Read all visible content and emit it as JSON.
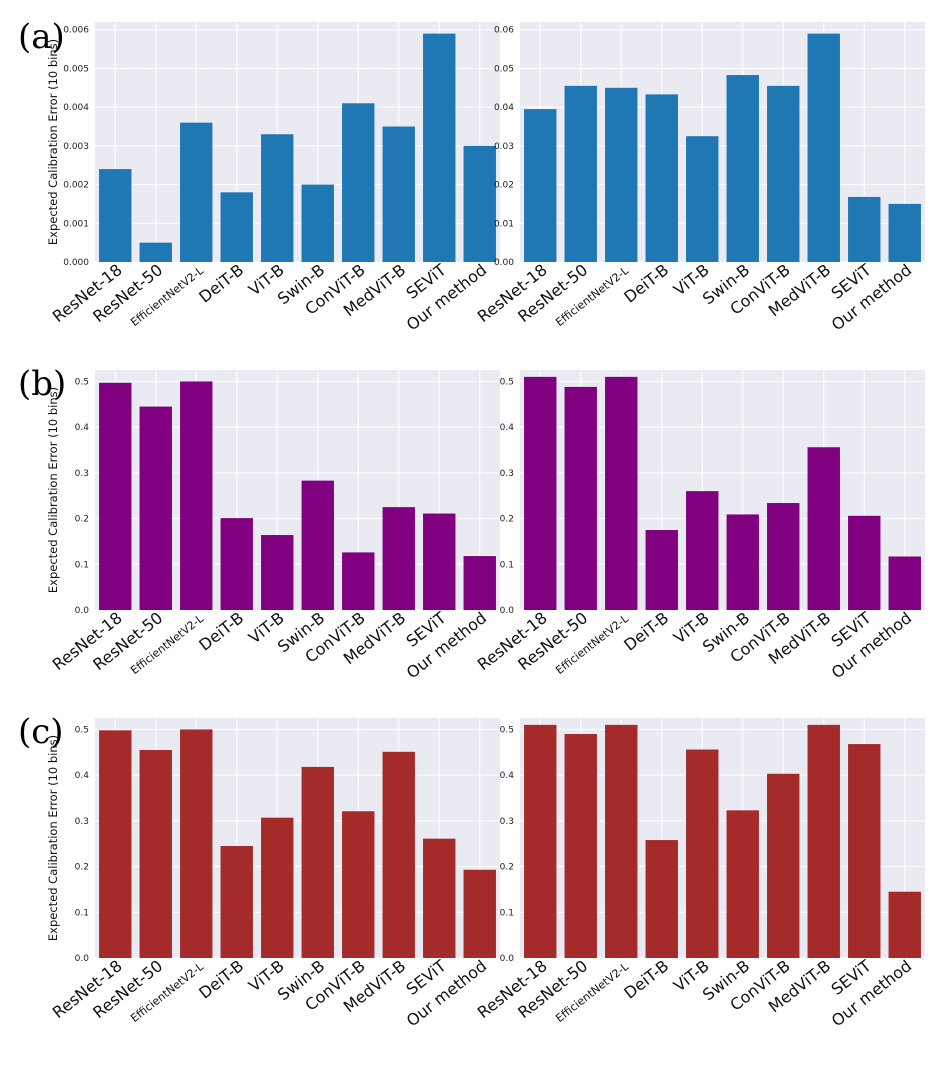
{
  "figure": {
    "row_labels": [
      "(a)",
      "(b)",
      "(c)"
    ],
    "ylabel": "Expected Calibration Error (10 bins)"
  },
  "colors": {
    "blue": "#1f77b4",
    "purple": "#800080",
    "red": "#a52a2a",
    "plot_bg": "#eaeaf2",
    "grid": "#ffffff"
  },
  "chart_data": [
    {
      "id": "a-left",
      "type": "bar",
      "row": "(a)",
      "categories": [
        "ResNet-18",
        "ResNet-50",
        "EfficientNetV2-L",
        "DeiT-B",
        "ViT-B",
        "Swin-B",
        "ConViT-B",
        "MedViT-B",
        "SEViT",
        "Our method"
      ],
      "values": [
        0.0024,
        0.0005,
        0.0036,
        0.0018,
        0.0033,
        0.002,
        0.0041,
        0.0035,
        0.0059,
        0.003
      ],
      "yticks": [
        "0.000",
        "0.001",
        "0.002",
        "0.003",
        "0.004",
        "0.005",
        "0.006"
      ],
      "ylim": [
        0,
        0.0062
      ],
      "ylabel": "Expected Calibration Error (10 bins)",
      "color": "#1f77b4"
    },
    {
      "id": "a-right",
      "type": "bar",
      "row": "(a)",
      "categories": [
        "ResNet-18",
        "ResNet-50",
        "EfficientNetV2-L",
        "DeiT-B",
        "ViT-B",
        "Swin-B",
        "ConViT-B",
        "MedViT-B",
        "SEViT",
        "Our method"
      ],
      "values": [
        0.0395,
        0.0455,
        0.045,
        0.0433,
        0.0325,
        0.0483,
        0.0455,
        0.059,
        0.0168,
        0.015
      ],
      "yticks": [
        "0.00",
        "0.01",
        "0.02",
        "0.03",
        "0.04",
        "0.05",
        "0.06"
      ],
      "ylim": [
        0,
        0.062
      ],
      "ylabel": "",
      "color": "#1f77b4"
    },
    {
      "id": "b-left",
      "type": "bar",
      "row": "(b)",
      "categories": [
        "ResNet-18",
        "ResNet-50",
        "EfficientNetV2-L",
        "DeiT-B",
        "ViT-B",
        "Swin-B",
        "ConViT-B",
        "MedViT-B",
        "SEViT",
        "Our method"
      ],
      "values": [
        0.497,
        0.445,
        0.5,
        0.201,
        0.164,
        0.283,
        0.126,
        0.225,
        0.211,
        0.118
      ],
      "yticks": [
        "0.0",
        "0.1",
        "0.2",
        "0.3",
        "0.4",
        "0.5"
      ],
      "ylim": [
        0,
        0.525
      ],
      "ylabel": "Expected Calibration Error (10 bins)",
      "color": "#800080"
    },
    {
      "id": "b-right",
      "type": "bar",
      "row": "(b)",
      "categories": [
        "ResNet-18",
        "ResNet-50",
        "EfficientNetV2-L",
        "DeiT-B",
        "ViT-B",
        "Swin-B",
        "ConViT-B",
        "MedViT-B",
        "SEViT",
        "Our method"
      ],
      "values": [
        0.51,
        0.488,
        0.51,
        0.175,
        0.26,
        0.209,
        0.234,
        0.356,
        0.206,
        0.117
      ],
      "yticks": [
        "0.0",
        "0.1",
        "0.2",
        "0.3",
        "0.4",
        "0.5"
      ],
      "ylim": [
        0,
        0.525
      ],
      "ylabel": "",
      "color": "#800080"
    },
    {
      "id": "c-left",
      "type": "bar",
      "row": "(c)",
      "categories": [
        "ResNet-18",
        "ResNet-50",
        "EfficientNetV2-L",
        "DeiT-B",
        "ViT-B",
        "Swin-B",
        "ConViT-B",
        "MedViT-B",
        "SEViT",
        "Our method"
      ],
      "values": [
        0.498,
        0.455,
        0.5,
        0.245,
        0.307,
        0.418,
        0.321,
        0.451,
        0.261,
        0.193
      ],
      "yticks": [
        "0.0",
        "0.1",
        "0.2",
        "0.3",
        "0.4",
        "0.5"
      ],
      "ylim": [
        0,
        0.525
      ],
      "ylabel": "Expected Calibration Error (10 bins)",
      "color": "#a52a2a"
    },
    {
      "id": "c-right",
      "type": "bar",
      "row": "(c)",
      "categories": [
        "ResNet-18",
        "ResNet-50",
        "EfficientNetV2-L",
        "DeiT-B",
        "ViT-B",
        "Swin-B",
        "ConViT-B",
        "MedViT-B",
        "SEViT",
        "Our method"
      ],
      "values": [
        0.51,
        0.49,
        0.51,
        0.258,
        0.456,
        0.323,
        0.403,
        0.51,
        0.468,
        0.145
      ],
      "yticks": [
        "0.0",
        "0.1",
        "0.2",
        "0.3",
        "0.4",
        "0.5"
      ],
      "ylim": [
        0,
        0.525
      ],
      "ylabel": "",
      "color": "#a52a2a"
    }
  ]
}
